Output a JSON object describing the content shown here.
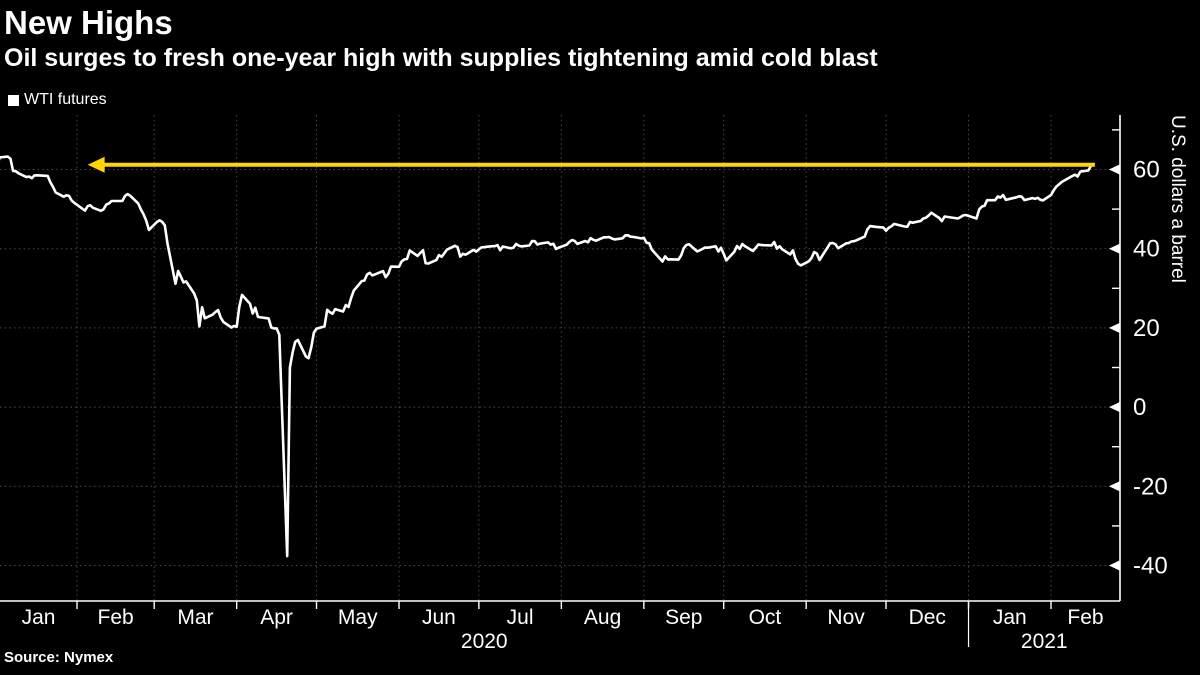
{
  "header": {
    "title": "New Highs",
    "subtitle": "Oil surges to fresh one-year high with supplies tightening amid cold blast"
  },
  "legend": {
    "marker": "white-square-icon",
    "series_label": "WTI futures"
  },
  "footer": {
    "source": "Source: Nymex"
  },
  "colors": {
    "background": "#000000",
    "text": "#ffffff",
    "series_line": "#ffffff",
    "annotation_arrow": "#ffd600",
    "gridline": "#4a4a4a",
    "axis": "#ffffff"
  },
  "chart_data": {
    "type": "line",
    "title": "New Highs",
    "subtitle": "Oil surges to fresh one-year high with supplies tightening amid cold blast",
    "ylabel": "U.S. dollars a barrel",
    "xlabel": "",
    "source": "Nymex",
    "legend_position": "top-left",
    "grid": "dotted",
    "x_unit": "days since 2020-01-01",
    "x_axis": {
      "months": [
        {
          "label": "Jan",
          "start": 0,
          "end": 31
        },
        {
          "label": "Feb",
          "start": 31,
          "end": 60
        },
        {
          "label": "Mar",
          "start": 60,
          "end": 91
        },
        {
          "label": "Apr",
          "start": 91,
          "end": 121
        },
        {
          "label": "May",
          "start": 121,
          "end": 152
        },
        {
          "label": "Jun",
          "start": 152,
          "end": 182
        },
        {
          "label": "Jul",
          "start": 182,
          "end": 213
        },
        {
          "label": "Aug",
          "start": 213,
          "end": 244
        },
        {
          "label": "Sep",
          "start": 244,
          "end": 274
        },
        {
          "label": "Oct",
          "start": 274,
          "end": 305
        },
        {
          "label": "Nov",
          "start": 305,
          "end": 335
        },
        {
          "label": "Dec",
          "start": 335,
          "end": 366
        },
        {
          "label": "Jan",
          "start": 366,
          "end": 397
        },
        {
          "label": "Feb",
          "start": 397,
          "end": 423
        }
      ],
      "years": [
        {
          "label": "2020",
          "start": 0,
          "end": 366
        },
        {
          "label": "2021",
          "start": 366,
          "end": 423
        }
      ]
    },
    "y_axis": {
      "major_ticks": [
        60,
        40,
        20,
        0,
        -20,
        -40
      ],
      "minor_ticks": [
        70,
        50,
        30,
        10,
        -10,
        -30
      ],
      "range": [
        -49,
        74
      ]
    },
    "annotation": {
      "type": "arrow",
      "direction": "left",
      "value": 61.2,
      "from_day": 412,
      "to_day": 35,
      "color": "#ffd600"
    },
    "series": [
      {
        "name": "WTI futures",
        "color": "#ffffff",
        "points": [
          [
            1,
            61.18
          ],
          [
            2,
            63.05
          ],
          [
            5,
            63.27
          ],
          [
            6,
            62.7
          ],
          [
            7,
            59.61
          ],
          [
            8,
            59.56
          ],
          [
            9,
            59.04
          ],
          [
            12,
            58.08
          ],
          [
            13,
            58.23
          ],
          [
            14,
            57.81
          ],
          [
            15,
            58.52
          ],
          [
            16,
            58.54
          ],
          [
            20,
            58.38
          ],
          [
            21,
            56.74
          ],
          [
            22,
            55.59
          ],
          [
            23,
            54.19
          ],
          [
            26,
            53.14
          ],
          [
            27,
            53.48
          ],
          [
            28,
            53.33
          ],
          [
            29,
            52.14
          ],
          [
            30,
            51.56
          ],
          [
            33,
            50.11
          ],
          [
            34,
            49.61
          ],
          [
            35,
            50.75
          ],
          [
            36,
            50.95
          ],
          [
            37,
            50.32
          ],
          [
            40,
            49.57
          ],
          [
            41,
            49.94
          ],
          [
            42,
            51.17
          ],
          [
            43,
            51.42
          ],
          [
            44,
            52.05
          ],
          [
            48,
            52.05
          ],
          [
            49,
            53.29
          ],
          [
            50,
            53.78
          ],
          [
            51,
            53.38
          ],
          [
            54,
            51.43
          ],
          [
            55,
            49.9
          ],
          [
            56,
            48.73
          ],
          [
            57,
            47.09
          ],
          [
            58,
            44.76
          ],
          [
            61,
            46.75
          ],
          [
            62,
            47.18
          ],
          [
            63,
            46.78
          ],
          [
            64,
            45.9
          ],
          [
            65,
            41.28
          ],
          [
            68,
            31.13
          ],
          [
            69,
            34.36
          ],
          [
            70,
            32.98
          ],
          [
            71,
            31.5
          ],
          [
            72,
            31.73
          ],
          [
            75,
            28.7
          ],
          [
            76,
            26.95
          ],
          [
            77,
            20.37
          ],
          [
            78,
            25.22
          ],
          [
            79,
            22.43
          ],
          [
            82,
            23.36
          ],
          [
            83,
            24.01
          ],
          [
            84,
            24.49
          ],
          [
            85,
            22.6
          ],
          [
            86,
            21.51
          ],
          [
            89,
            20.09
          ],
          [
            90,
            20.48
          ],
          [
            91,
            20.31
          ],
          [
            92,
            25.32
          ],
          [
            93,
            28.34
          ],
          [
            96,
            26.08
          ],
          [
            97,
            23.63
          ],
          [
            98,
            25.09
          ],
          [
            99,
            22.76
          ],
          [
            103,
            22.41
          ],
          [
            104,
            20.11
          ],
          [
            105,
            19.87
          ],
          [
            106,
            19.87
          ],
          [
            107,
            18.27
          ],
          [
            110,
            -37.63
          ],
          [
            111,
            10.01
          ],
          [
            112,
            13.78
          ],
          [
            113,
            16.5
          ],
          [
            114,
            16.94
          ],
          [
            117,
            12.78
          ],
          [
            118,
            12.34
          ],
          [
            119,
            15.06
          ],
          [
            120,
            18.84
          ],
          [
            121,
            19.78
          ],
          [
            124,
            20.39
          ],
          [
            125,
            24.56
          ],
          [
            126,
            23.99
          ],
          [
            127,
            23.55
          ],
          [
            128,
            24.74
          ],
          [
            131,
            24.14
          ],
          [
            132,
            25.78
          ],
          [
            133,
            25.29
          ],
          [
            134,
            27.56
          ],
          [
            135,
            29.43
          ],
          [
            138,
            31.82
          ],
          [
            139,
            31.96
          ],
          [
            140,
            33.49
          ],
          [
            141,
            33.92
          ],
          [
            142,
            33.25
          ],
          [
            146,
            34.35
          ],
          [
            147,
            32.81
          ],
          [
            148,
            33.71
          ],
          [
            149,
            35.49
          ],
          [
            152,
            35.44
          ],
          [
            153,
            36.81
          ],
          [
            154,
            37.29
          ],
          [
            155,
            37.41
          ],
          [
            156,
            39.55
          ],
          [
            159,
            38.19
          ],
          [
            160,
            38.94
          ],
          [
            161,
            39.6
          ],
          [
            162,
            36.34
          ],
          [
            163,
            36.26
          ],
          [
            166,
            37.12
          ],
          [
            167,
            38.38
          ],
          [
            168,
            37.96
          ],
          [
            169,
            38.84
          ],
          [
            170,
            39.75
          ],
          [
            173,
            40.73
          ],
          [
            174,
            40.37
          ],
          [
            175,
            38.01
          ],
          [
            176,
            38.72
          ],
          [
            177,
            38.49
          ],
          [
            180,
            39.7
          ],
          [
            181,
            39.27
          ],
          [
            182,
            39.82
          ],
          [
            183,
            40.32
          ],
          [
            187,
            40.63
          ],
          [
            188,
            40.62
          ],
          [
            189,
            40.9
          ],
          [
            190,
            39.62
          ],
          [
            191,
            40.55
          ],
          [
            194,
            40.1
          ],
          [
            195,
            40.29
          ],
          [
            196,
            41.2
          ],
          [
            197,
            40.75
          ],
          [
            198,
            40.59
          ],
          [
            201,
            40.81
          ],
          [
            202,
            41.92
          ],
          [
            203,
            41.9
          ],
          [
            204,
            41.07
          ],
          [
            205,
            41.29
          ],
          [
            208,
            41.6
          ],
          [
            209,
            41.04
          ],
          [
            210,
            41.27
          ],
          [
            211,
            39.92
          ],
          [
            212,
            40.27
          ],
          [
            215,
            41.01
          ],
          [
            216,
            41.7
          ],
          [
            217,
            42.19
          ],
          [
            218,
            41.95
          ],
          [
            219,
            41.22
          ],
          [
            222,
            41.94
          ],
          [
            223,
            41.61
          ],
          [
            224,
            42.67
          ],
          [
            225,
            42.24
          ],
          [
            226,
            42.01
          ],
          [
            229,
            42.89
          ],
          [
            230,
            42.89
          ],
          [
            231,
            42.93
          ],
          [
            232,
            42.58
          ],
          [
            233,
            42.34
          ],
          [
            236,
            42.62
          ],
          [
            237,
            43.35
          ],
          [
            238,
            43.39
          ],
          [
            239,
            43.04
          ],
          [
            240,
            42.97
          ],
          [
            243,
            42.61
          ],
          [
            244,
            42.76
          ],
          [
            245,
            41.51
          ],
          [
            246,
            41.37
          ],
          [
            247,
            39.77
          ],
          [
            251,
            36.76
          ],
          [
            252,
            38.05
          ],
          [
            253,
            37.3
          ],
          [
            254,
            37.33
          ],
          [
            257,
            37.26
          ],
          [
            258,
            38.28
          ],
          [
            259,
            40.16
          ],
          [
            260,
            40.97
          ],
          [
            261,
            41.11
          ],
          [
            264,
            39.31
          ],
          [
            265,
            39.6
          ],
          [
            266,
            39.93
          ],
          [
            267,
            40.31
          ],
          [
            268,
            40.25
          ],
          [
            271,
            40.6
          ],
          [
            272,
            39.29
          ],
          [
            273,
            40.22
          ],
          [
            274,
            38.72
          ],
          [
            275,
            37.05
          ],
          [
            278,
            39.22
          ],
          [
            279,
            40.67
          ],
          [
            280,
            39.95
          ],
          [
            281,
            41.19
          ],
          [
            282,
            40.6
          ],
          [
            285,
            39.43
          ],
          [
            286,
            40.2
          ],
          [
            287,
            41.04
          ],
          [
            288,
            40.96
          ],
          [
            289,
            40.88
          ],
          [
            292,
            40.83
          ],
          [
            293,
            41.7
          ],
          [
            294,
            40.03
          ],
          [
            295,
            40.64
          ],
          [
            296,
            39.85
          ],
          [
            299,
            38.56
          ],
          [
            300,
            39.57
          ],
          [
            301,
            37.39
          ],
          [
            302,
            36.17
          ],
          [
            303,
            35.79
          ],
          [
            306,
            36.81
          ],
          [
            307,
            37.66
          ],
          [
            308,
            39.15
          ],
          [
            309,
            38.79
          ],
          [
            310,
            37.14
          ],
          [
            313,
            40.29
          ],
          [
            314,
            41.36
          ],
          [
            315,
            41.45
          ],
          [
            316,
            41.12
          ],
          [
            317,
            40.13
          ],
          [
            320,
            41.34
          ],
          [
            321,
            41.43
          ],
          [
            322,
            41.82
          ],
          [
            323,
            41.9
          ],
          [
            324,
            42.15
          ],
          [
            327,
            43.06
          ],
          [
            328,
            44.91
          ],
          [
            329,
            45.71
          ],
          [
            331,
            45.53
          ],
          [
            334,
            45.34
          ],
          [
            335,
            44.55
          ],
          [
            336,
            45.28
          ],
          [
            337,
            45.64
          ],
          [
            338,
            46.26
          ],
          [
            341,
            45.76
          ],
          [
            342,
            45.6
          ],
          [
            343,
            45.52
          ],
          [
            344,
            46.78
          ],
          [
            345,
            46.57
          ],
          [
            348,
            46.99
          ],
          [
            349,
            47.62
          ],
          [
            350,
            47.82
          ],
          [
            351,
            48.36
          ],
          [
            352,
            49.1
          ],
          [
            355,
            47.74
          ],
          [
            356,
            46.97
          ],
          [
            357,
            48.12
          ],
          [
            362,
            47.62
          ],
          [
            363,
            47.99
          ],
          [
            364,
            48.4
          ],
          [
            365,
            48.52
          ],
          [
            369,
            47.62
          ],
          [
            370,
            49.93
          ],
          [
            371,
            50.63
          ],
          [
            372,
            50.83
          ],
          [
            373,
            52.24
          ],
          [
            376,
            52.25
          ],
          [
            377,
            53.21
          ],
          [
            378,
            52.91
          ],
          [
            379,
            53.57
          ],
          [
            380,
            52.36
          ],
          [
            384,
            52.98
          ],
          [
            385,
            53.24
          ],
          [
            386,
            53.13
          ],
          [
            387,
            52.27
          ],
          [
            390,
            52.77
          ],
          [
            391,
            52.61
          ],
          [
            392,
            52.85
          ],
          [
            393,
            52.34
          ],
          [
            394,
            52.2
          ],
          [
            397,
            53.55
          ],
          [
            398,
            54.76
          ],
          [
            399,
            55.69
          ],
          [
            400,
            56.23
          ],
          [
            401,
            56.85
          ],
          [
            404,
            57.97
          ],
          [
            405,
            58.36
          ],
          [
            406,
            58.68
          ],
          [
            407,
            58.24
          ],
          [
            408,
            59.47
          ],
          [
            411,
            59.75
          ],
          [
            412,
            60.9
          ]
        ]
      }
    ]
  }
}
